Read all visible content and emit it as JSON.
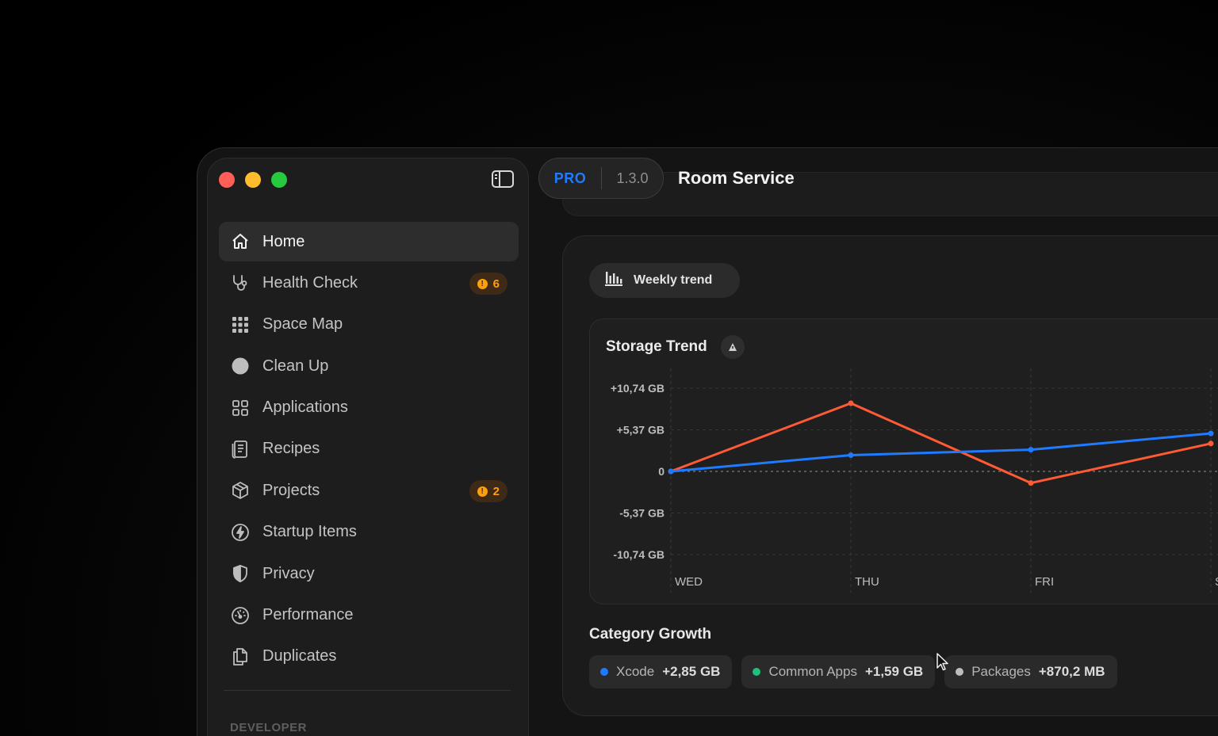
{
  "window": {
    "traffic_lights": {
      "close": "#ff5f56",
      "minimize": "#ffbd2e",
      "zoom": "#27c93f"
    }
  },
  "header": {
    "badge": "PRO",
    "version": "1.3.0",
    "title": "Room Service",
    "accent_color": "#1e7bff"
  },
  "sidebar": {
    "items": [
      {
        "label": "Home",
        "icon": "house-icon",
        "active": true
      },
      {
        "label": "Health Check",
        "icon": "stethoscope-icon",
        "badge": "6"
      },
      {
        "label": "Space Map",
        "icon": "grid-dots-icon"
      },
      {
        "label": "Clean Up",
        "icon": "circle-icon"
      },
      {
        "label": "Applications",
        "icon": "apps-grid-icon"
      },
      {
        "label": "Recipes",
        "icon": "document-icon"
      },
      {
        "label": "Projects",
        "icon": "package-box-icon",
        "badge": "2"
      },
      {
        "label": "Startup Items",
        "icon": "bolt-circle-icon"
      },
      {
        "label": "Privacy",
        "icon": "shield-icon"
      },
      {
        "label": "Performance",
        "icon": "gauge-icon"
      },
      {
        "label": "Duplicates",
        "icon": "duplicate-files-icon"
      }
    ],
    "section_label": "DEVELOPER",
    "badge_color": "#ff9f0a"
  },
  "main": {
    "trend_button": "Weekly trend",
    "chart_title": "Storage Trend",
    "category_title": "Category Growth",
    "categories": [
      {
        "name": "Xcode",
        "value": "+2,85 GB",
        "color": "#1e7bff"
      },
      {
        "name": "Common Apps",
        "value": "+1,59 GB",
        "color": "#21c07a"
      },
      {
        "name": "Packages",
        "value": "+870,2 MB",
        "color": "#bdbdbd"
      }
    ]
  },
  "chart_data": {
    "type": "line",
    "title": "Storage Trend",
    "categories": [
      "WED",
      "THU",
      "FRI",
      "SAT"
    ],
    "y_tick_labels": [
      "+10,74 GB",
      "+5,37 GB",
      "0",
      "-5,37 GB",
      "-10,74 GB"
    ],
    "y_ticks": [
      10.74,
      5.37,
      0,
      -5.37,
      -10.74
    ],
    "ylim": [
      -10.74,
      10.74
    ],
    "grid": true,
    "series": [
      {
        "color": "#ff5a36",
        "values": [
          0,
          8.8,
          -1.5,
          3.6
        ]
      },
      {
        "color": "#1e7bff",
        "values": [
          0,
          2.1,
          2.8,
          4.9
        ]
      }
    ]
  }
}
